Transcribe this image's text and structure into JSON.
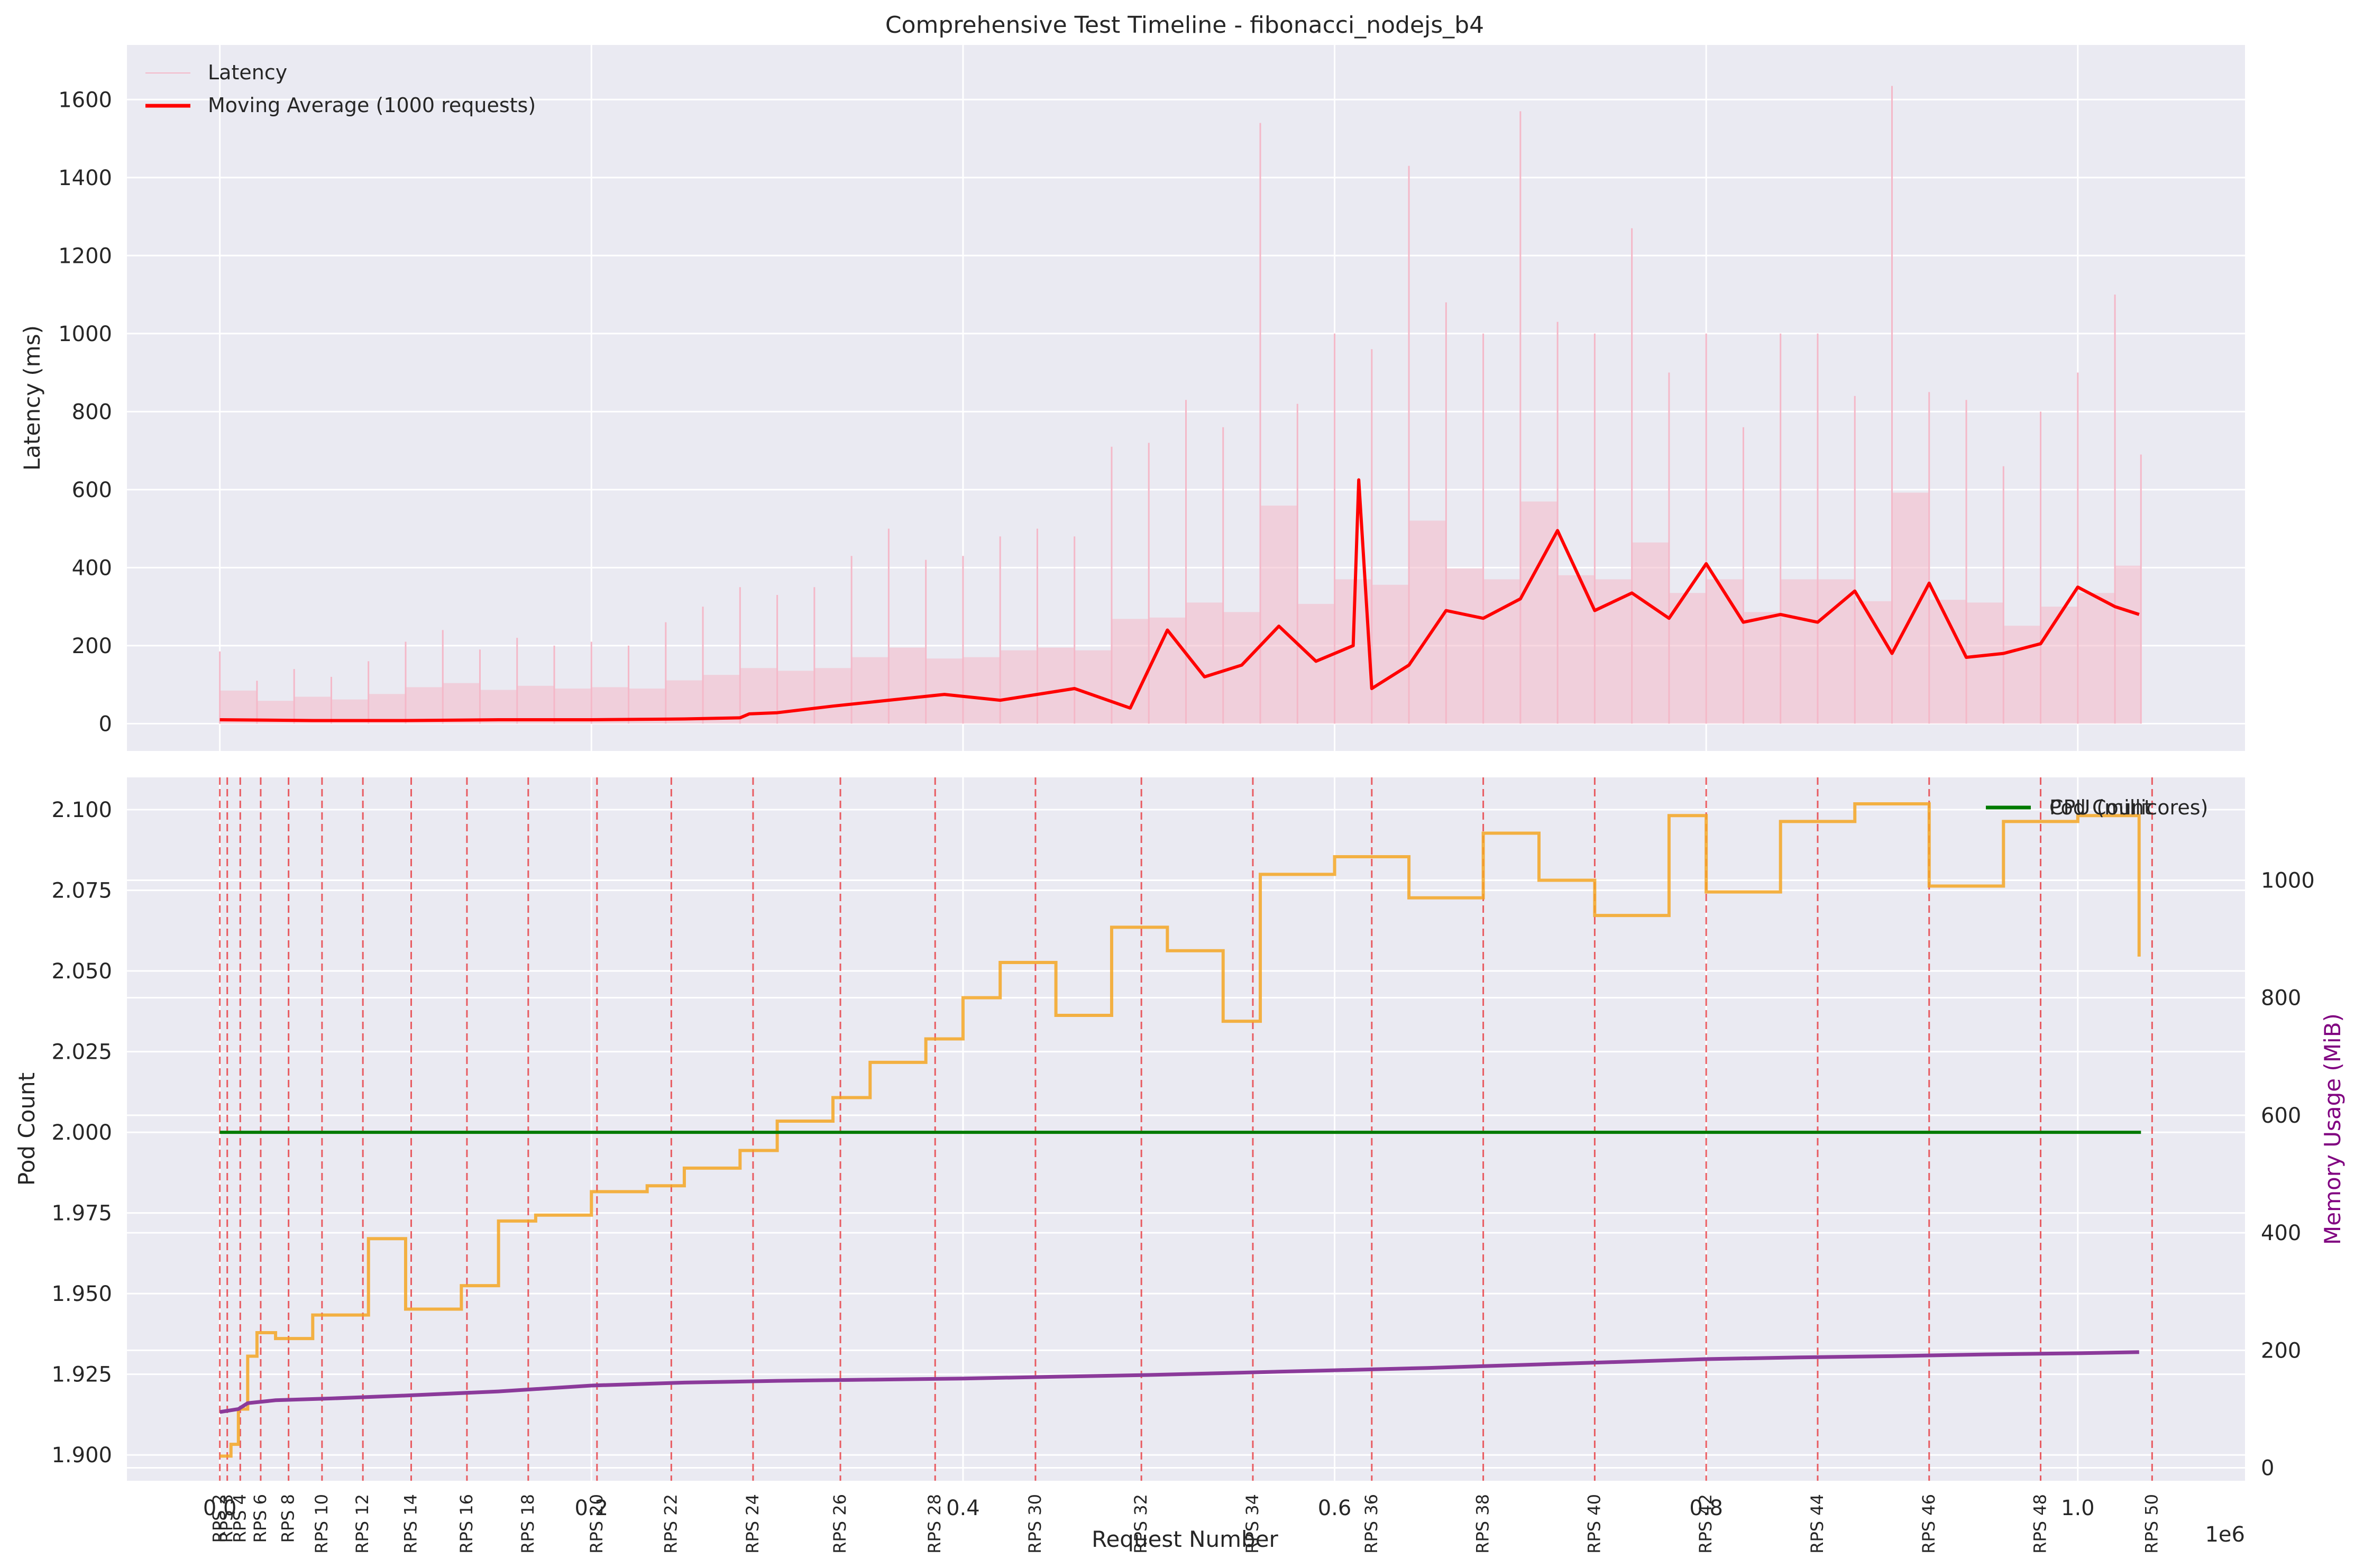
{
  "chart_data": [
    {
      "type": "line",
      "title": "Comprehensive Test Timeline - fibonacci_nodejs_b4",
      "ylabel": "Latency (ms)",
      "xlim": [
        -50000,
        1090000
      ],
      "ylim": [
        -70,
        1740
      ],
      "y_ticks": [
        0,
        200,
        400,
        600,
        800,
        1000,
        1200,
        1400,
        1600
      ],
      "y_tick_labels": [
        "0",
        "200",
        "400",
        "600",
        "800",
        "1000",
        "1200",
        "1400",
        "1600"
      ],
      "grid": true,
      "legend_position": "top-left",
      "series": [
        {
          "name": "Latency",
          "color": "#f4b8c8",
          "style": "thin",
          "x": [
            0,
            20000,
            40000,
            60000,
            80000,
            100000,
            120000,
            140000,
            160000,
            180000,
            200000,
            220000,
            240000,
            260000,
            280000,
            300000,
            320000,
            340000,
            360000,
            380000,
            400000,
            420000,
            440000,
            460000,
            480000,
            500000,
            520000,
            540000,
            560000,
            580000,
            600000,
            620000,
            640000,
            660000,
            680000,
            700000,
            720000,
            740000,
            760000,
            780000,
            800000,
            820000,
            840000,
            860000,
            880000,
            900000,
            920000,
            940000,
            960000,
            980000,
            1000000,
            1020000,
            1034000
          ],
          "values": [
            185,
            110,
            140,
            120,
            160,
            210,
            240,
            190,
            220,
            200,
            210,
            200,
            260,
            300,
            350,
            330,
            350,
            430,
            500,
            420,
            430,
            480,
            500,
            480,
            710,
            720,
            830,
            760,
            1540,
            820,
            1000,
            960,
            1430,
            1080,
            1000,
            1570,
            1030,
            1000,
            1270,
            900,
            1000,
            760,
            1000,
            1000,
            840,
            1635,
            850,
            830,
            660,
            800,
            900,
            1100,
            690
          ]
        },
        {
          "name": "Moving Average (1000 requests)",
          "color": "#ff0000",
          "style": "thick",
          "x": [
            0,
            50000,
            100000,
            150000,
            200000,
            250000,
            280000,
            285000,
            300000,
            330000,
            360000,
            390000,
            420000,
            460000,
            490000,
            510000,
            530000,
            550000,
            570000,
            590000,
            610000,
            613000,
            620000,
            640000,
            660000,
            680000,
            700000,
            720000,
            740000,
            760000,
            780000,
            800000,
            820000,
            840000,
            860000,
            880000,
            900000,
            920000,
            940000,
            960000,
            980000,
            1000000,
            1020000,
            1033000
          ],
          "values": [
            10,
            8,
            8,
            10,
            10,
            12,
            15,
            25,
            28,
            45,
            60,
            75,
            60,
            90,
            40,
            240,
            120,
            150,
            250,
            160,
            200,
            625,
            90,
            150,
            290,
            270,
            320,
            495,
            290,
            335,
            270,
            410,
            260,
            280,
            260,
            340,
            180,
            360,
            170,
            180,
            205,
            350,
            300,
            280
          ]
        }
      ]
    },
    {
      "type": "line",
      "xlabel": "Request Number",
      "ylabel": "Pod Count",
      "y2label": "Memory Usage (MiB)",
      "x_scale_label": "1e6",
      "xlim": [
        -50000,
        1090000
      ],
      "ylim": [
        1.892,
        2.11
      ],
      "y2lim": [
        -22,
        1175
      ],
      "x_ticks": [
        0,
        200000,
        400000,
        600000,
        800000,
        1000000
      ],
      "x_tick_labels": [
        "0.0",
        "0.2",
        "0.4",
        "0.6",
        "0.8",
        "1.0"
      ],
      "y_ticks": [
        1.9,
        1.925,
        1.95,
        1.975,
        2.0,
        2.025,
        2.05,
        2.075,
        2.1
      ],
      "y_tick_labels": [
        "1.900",
        "1.925",
        "1.950",
        "1.975",
        "2.000",
        "2.025",
        "2.050",
        "2.075",
        "2.100"
      ],
      "y2_ticks": [
        0,
        200,
        400,
        600,
        800,
        1000
      ],
      "y2_tick_labels": [
        "0",
        "200",
        "400",
        "600",
        "800",
        "1000"
      ],
      "grid": true,
      "legend_position": "top-right",
      "legend_entries": [
        {
          "label": "CPU (millicores)",
          "color": "#f5a623"
        },
        {
          "label": "Pod Count",
          "color": "#007a00"
        }
      ],
      "series": [
        {
          "name": "Pod Count",
          "axis": "left",
          "color": "#007a00",
          "x": [
            0,
            1034000
          ],
          "values": [
            2.0,
            2.0
          ]
        },
        {
          "name": "CPU (millicores)",
          "axis": "right",
          "color": "#f5a623",
          "x": [
            0,
            6000,
            10000,
            15000,
            20000,
            30000,
            50000,
            80000,
            100000,
            130000,
            150000,
            170000,
            200000,
            230000,
            250000,
            280000,
            300000,
            330000,
            350000,
            380000,
            400000,
            420000,
            450000,
            480000,
            510000,
            540000,
            560000,
            600000,
            640000,
            680000,
            710000,
            740000,
            780000,
            800000,
            840000,
            880000,
            920000,
            960000,
            1000000,
            1033000
          ],
          "values": [
            20,
            40,
            100,
            190,
            230,
            220,
            260,
            390,
            270,
            310,
            420,
            430,
            470,
            480,
            510,
            540,
            590,
            630,
            690,
            730,
            800,
            860,
            770,
            920,
            880,
            760,
            1010,
            1040,
            970,
            1080,
            1000,
            940,
            1110,
            980,
            1100,
            1130,
            990,
            1100,
            1110,
            870
          ]
        },
        {
          "name": "Memory",
          "axis": "right",
          "color": "#8b3a9a",
          "x": [
            0,
            10000,
            15000,
            30000,
            60000,
            100000,
            150000,
            200000,
            250000,
            300000,
            350000,
            400000,
            450000,
            500000,
            550000,
            600000,
            650000,
            700000,
            750000,
            800000,
            850000,
            900000,
            950000,
            1000000,
            1033000
          ],
          "values": [
            95,
            100,
            110,
            115,
            118,
            123,
            130,
            140,
            145,
            148,
            150,
            152,
            155,
            158,
            162,
            166,
            170,
            175,
            180,
            185,
            188,
            190,
            193,
            195,
            197
          ]
        }
      ],
      "rps_markers": [
        {
          "x": 0,
          "label": "RPS 2"
        },
        {
          "x": 4000,
          "label": "RPS 3"
        },
        {
          "x": 11000,
          "label": "RPS 4"
        },
        {
          "x": 22000,
          "label": "RPS 6"
        },
        {
          "x": 37000,
          "label": "RPS 8"
        },
        {
          "x": 55000,
          "label": "RPS 10"
        },
        {
          "x": 77000,
          "label": "RPS 12"
        },
        {
          "x": 103000,
          "label": "RPS 14"
        },
        {
          "x": 133000,
          "label": "RPS 16"
        },
        {
          "x": 166000,
          "label": "RPS 18"
        },
        {
          "x": 203000,
          "label": "RPS 20"
        },
        {
          "x": 243000,
          "label": "RPS 22"
        },
        {
          "x": 287000,
          "label": "RPS 24"
        },
        {
          "x": 334000,
          "label": "RPS 26"
        },
        {
          "x": 385000,
          "label": "RPS 28"
        },
        {
          "x": 439000,
          "label": "RPS 30"
        },
        {
          "x": 496000,
          "label": "RPS 32"
        },
        {
          "x": 556000,
          "label": "RPS 34"
        },
        {
          "x": 620000,
          "label": "RPS 36"
        },
        {
          "x": 680000,
          "label": "RPS 38"
        },
        {
          "x": 740000,
          "label": "RPS 40"
        },
        {
          "x": 800000,
          "label": "RPS 42"
        },
        {
          "x": 860000,
          "label": "RPS 44"
        },
        {
          "x": 920000,
          "label": "RPS 46"
        },
        {
          "x": 980000,
          "label": "RPS 48"
        },
        {
          "x": 1040000,
          "label": "RPS 50"
        }
      ]
    }
  ]
}
